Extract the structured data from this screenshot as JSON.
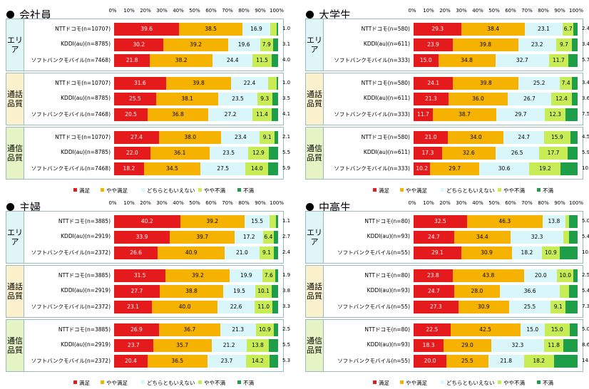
{
  "axis_ticks": [
    "0%",
    "10%",
    "20%",
    "30%",
    "40%",
    "50%",
    "60%",
    "70%",
    "80%",
    "90%",
    "100%"
  ],
  "legend": [
    "満足",
    "やや満足",
    "どちらともいえない",
    "やや不満",
    "不満"
  ],
  "colors": [
    "#e41a1c",
    "#f5b200",
    "#d9f6fa",
    "#c8ec55",
    "#1f9e4a"
  ],
  "group_names": [
    "エリア",
    "通話品質",
    "通信品質"
  ],
  "chart_data": [
    {
      "type": "bar",
      "title": "会社員",
      "stacked": true,
      "orientation": "horizontal",
      "xlim": [
        0,
        100
      ],
      "groups": [
        {
          "name": "エリア",
          "rows": [
            {
              "label": "NTTドコモ(n=10707)",
              "values": [
                39.6,
                38.5,
                16.9,
                3.8,
                1.0
              ]
            },
            {
              "label": "KDDI(au)(n=8785)",
              "values": [
                30.2,
                39.2,
                19.6,
                7.9,
                3.1
              ]
            },
            {
              "label": "ソフトバンクモバイル(n=7468)",
              "values": [
                21.8,
                38.2,
                24.4,
                11.5,
                4.0
              ]
            }
          ]
        },
        {
          "name": "通話品質",
          "rows": [
            {
              "label": "NTTドコモ(n=10707)",
              "values": [
                31.6,
                39.8,
                22.4,
                5.2,
                1.0
              ]
            },
            {
              "label": "KDDI(au)(n=8785)",
              "values": [
                25.5,
                38.1,
                23.5,
                9.3,
                3.5
              ]
            },
            {
              "label": "ソフトバンクモバイル(n=7468)",
              "values": [
                20.5,
                36.8,
                27.2,
                11.4,
                4.1
              ]
            }
          ]
        },
        {
          "name": "通信品質",
          "rows": [
            {
              "label": "NTTドコモ(n=10707)",
              "values": [
                27.4,
                38.0,
                23.4,
                9.1,
                2.1
              ]
            },
            {
              "label": "KDDI(au)(n=8785)",
              "values": [
                22.0,
                36.1,
                23.5,
                12.9,
                5.5
              ]
            },
            {
              "label": "ソフトバンクモバイル(n=7468)",
              "values": [
                18.2,
                34.5,
                27.5,
                14.0,
                5.9
              ]
            }
          ]
        }
      ]
    },
    {
      "type": "bar",
      "title": "大学生",
      "stacked": true,
      "orientation": "horizontal",
      "xlim": [
        0,
        100
      ],
      "groups": [
        {
          "name": "エリア",
          "rows": [
            {
              "label": "NTTドコモ(n=580)",
              "values": [
                29.3,
                38.4,
                23.1,
                6.7,
                2.4
              ]
            },
            {
              "label": "KDDI(au)(n=611)",
              "values": [
                23.9,
                39.8,
                23.2,
                9.7,
                3.4
              ]
            },
            {
              "label": "ソフトバンクモバイル(n=333)",
              "values": [
                15.0,
                34.8,
                32.7,
                11.7,
                5.7
              ]
            }
          ]
        },
        {
          "name": "通話品質",
          "rows": [
            {
              "label": "NTTドコモ(n=580)",
              "values": [
                24.1,
                39.8,
                25.2,
                7.4,
                3.4
              ]
            },
            {
              "label": "KDDI(au)(n=611)",
              "values": [
                21.3,
                36.0,
                26.7,
                12.4,
                3.6
              ]
            },
            {
              "label": "ソフトバンクモバイル(n=333)",
              "values": [
                11.7,
                38.7,
                29.7,
                12.3,
                7.5
              ]
            }
          ]
        },
        {
          "name": "通信品質",
          "rows": [
            {
              "label": "NTTドコモ(n=580)",
              "values": [
                21.0,
                34.0,
                24.7,
                15.9,
                4.5
              ]
            },
            {
              "label": "KDDI(au)(n=611)",
              "values": [
                17.3,
                32.6,
                26.5,
                17.7,
                5.9
              ]
            },
            {
              "label": "ソフトバンクモバイル(n=333)",
              "values": [
                10.2,
                29.7,
                30.6,
                19.2,
                10.2
              ]
            }
          ]
        }
      ]
    },
    {
      "type": "bar",
      "title": "主婦",
      "stacked": true,
      "orientation": "horizontal",
      "xlim": [
        0,
        100
      ],
      "groups": [
        {
          "name": "エリア",
          "rows": [
            {
              "label": "NTTドコモ(n=3885)",
              "values": [
                40.2,
                39.2,
                15.5,
                3.9,
                1.1
              ]
            },
            {
              "label": "KDDI(au)(n=2919)",
              "values": [
                33.9,
                39.7,
                17.2,
                6.4,
                2.7
              ]
            },
            {
              "label": "ソフトバンクモバイル(n=2372)",
              "values": [
                26.6,
                40.9,
                21.0,
                9.1,
                2.4
              ]
            }
          ]
        },
        {
          "name": "通話品質",
          "rows": [
            {
              "label": "NTTドコモ(n=3885)",
              "values": [
                31.5,
                39.2,
                19.9,
                7.6,
                1.9
              ]
            },
            {
              "label": "KDDI(au)(n=2919)",
              "values": [
                27.7,
                38.8,
                19.5,
                10.1,
                3.8
              ]
            },
            {
              "label": "ソフトバンクモバイル(n=2372)",
              "values": [
                23.1,
                40.0,
                22.6,
                11.0,
                3.3
              ]
            }
          ]
        },
        {
          "name": "通信品質",
          "rows": [
            {
              "label": "NTTドコモ(n=3885)",
              "values": [
                26.9,
                36.7,
                21.3,
                10.9,
                2.5
              ]
            },
            {
              "label": "KDDI(au)(n=2919)",
              "values": [
                23.7,
                35.7,
                21.2,
                13.8,
                5.5
              ]
            },
            {
              "label": "ソフトバンクモバイル(n=2372)",
              "values": [
                20.4,
                36.5,
                23.7,
                14.2,
                5.3
              ]
            }
          ]
        }
      ]
    },
    {
      "type": "bar",
      "title": "中高生",
      "stacked": true,
      "orientation": "horizontal",
      "xlim": [
        0,
        100
      ],
      "groups": [
        {
          "name": "エリア",
          "rows": [
            {
              "label": "NTTドコモ(n=80)",
              "values": [
                32.5,
                46.3,
                13.8,
                2.5,
                5.0
              ]
            },
            {
              "label": "KDDI(au)(n=93)",
              "values": [
                24.7,
                34.4,
                32.3,
                3.2,
                5.4
              ]
            },
            {
              "label": "ソフトバンクモバイル(n=55)",
              "values": [
                29.1,
                30.9,
                18.2,
                10.9,
                10.9
              ]
            }
          ]
        },
        {
          "name": "通話品質",
          "rows": [
            {
              "label": "NTTドコモ(n=80)",
              "values": [
                23.8,
                43.8,
                20.0,
                10.0,
                2.5
              ]
            },
            {
              "label": "KDDI(au)(n=93)",
              "values": [
                24.7,
                28.0,
                36.6,
                5.4,
                5.4
              ]
            },
            {
              "label": "ソフトバンクモバイル(n=55)",
              "values": [
                27.3,
                30.9,
                25.5,
                9.1,
                7.3
              ]
            }
          ]
        },
        {
          "name": "通信品質",
          "rows": [
            {
              "label": "NTTドコモ(n=80)",
              "values": [
                22.5,
                42.5,
                15.0,
                15.0,
                5.0
              ]
            },
            {
              "label": "KDDI(au)(n=93)",
              "values": [
                18.3,
                29.0,
                32.3,
                11.8,
                8.6
              ]
            },
            {
              "label": "ソフトバンクモバイル(n=55)",
              "values": [
                20.0,
                25.5,
                21.8,
                18.2,
                14.5
              ]
            }
          ]
        }
      ]
    }
  ]
}
